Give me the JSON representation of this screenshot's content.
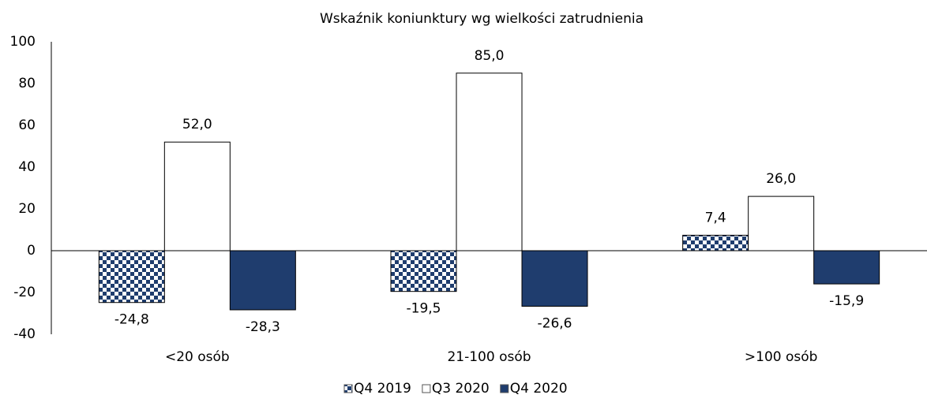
{
  "chart_data": {
    "type": "bar",
    "title": "Wskaźnik koniunktury wg wielkości zatrudnienia",
    "categories": [
      "<20 osób",
      "21-100 osób",
      ">100 osób"
    ],
    "series": [
      {
        "name": "Q4 2019",
        "color": "#1f3d6e",
        "pattern": "checker",
        "values": [
          -24.8,
          -19.5,
          7.4
        ],
        "value_labels": [
          "-24,8",
          "-19,5",
          "7,4"
        ]
      },
      {
        "name": "Q3 2020",
        "color": "#ffffff",
        "values": [
          52.0,
          85.0,
          26.0
        ],
        "value_labels": [
          "52,0",
          "85,0",
          "26,0"
        ]
      },
      {
        "name": "Q4 2020",
        "color": "#1f3d6e",
        "values": [
          -28.3,
          -26.6,
          -15.9
        ],
        "value_labels": [
          "-28,3",
          "-26,6",
          "-15,9"
        ]
      }
    ],
    "ylim": [
      -40,
      100
    ],
    "yticks": [
      -40,
      -20,
      0,
      20,
      40,
      60,
      80,
      100
    ],
    "grid": false,
    "legend": "bottom"
  }
}
